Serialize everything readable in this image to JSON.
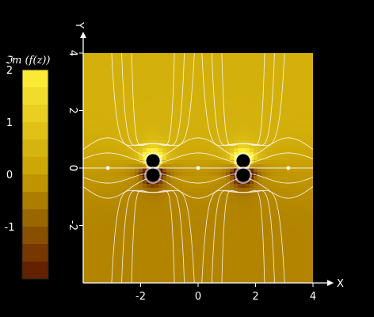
{
  "chart_data": {
    "type": "heatmap",
    "title": "",
    "colorbar_label": "ℑm (f(z))",
    "xlabel": "X",
    "ylabel": "Y",
    "xlim": [
      -4,
      4
    ],
    "ylim": [
      -4,
      4
    ],
    "x_ticks": [
      -2,
      0,
      2,
      4
    ],
    "y_ticks": [
      -2,
      0,
      2,
      4
    ],
    "x_tick_labels": [
      "-2",
      "0",
      "2",
      "4"
    ],
    "y_tick_labels": [
      "-2",
      "0",
      "2",
      "4"
    ],
    "colorbar_range": [
      -2,
      2
    ],
    "colorbar_ticks": [
      -1,
      0,
      1,
      2
    ],
    "colorbar_tick_labels": [
      "-1",
      "0",
      "1",
      "2"
    ],
    "colorbar_bands": 12,
    "colors": {
      "high": "#fff03a",
      "mid": "#c8a000",
      "low": "#5a1500",
      "background": "#000000",
      "contour": "#ffffff"
    },
    "poles": [
      {
        "x": -1.57,
        "y": 0.25
      },
      {
        "x": -1.57,
        "y": -0.25
      },
      {
        "x": 1.57,
        "y": 0.25
      },
      {
        "x": 1.57,
        "y": -0.25
      }
    ],
    "zeros": [
      {
        "x": -3.14,
        "y": 0
      },
      {
        "x": 0,
        "y": 0
      },
      {
        "x": 3.14,
        "y": 0
      }
    ]
  }
}
